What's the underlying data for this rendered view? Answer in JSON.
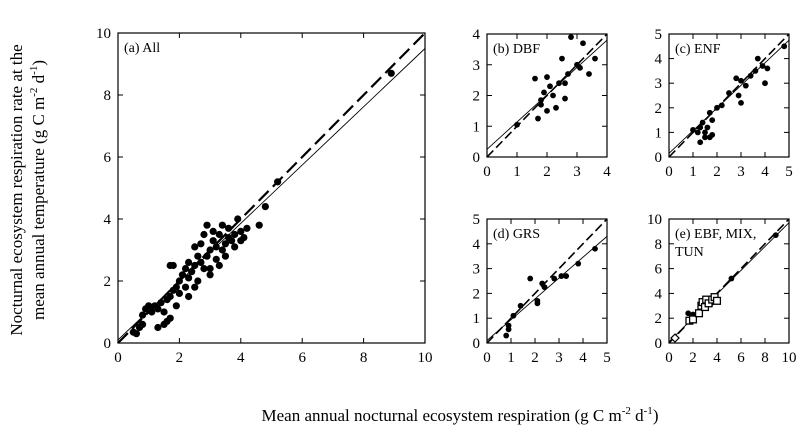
{
  "figure": {
    "xlabel": "Mean annual nocturnal ecosystem respiration (g C m",
    "xlabel_sup1": "-2",
    "xlabel_mid": " d",
    "xlabel_sup2": "-1",
    "xlabel_end": ")",
    "ylabel_line1": "Nocturnal ecosystem respiration rate at the",
    "ylabel_line2a": "mean annual temperature (g C m",
    "ylabel_sup1": "-2",
    "ylabel_mid": " d",
    "ylabel_sup2": "-1",
    "ylabel_end": ")"
  },
  "chart_data": [
    {
      "id": "all",
      "type": "scatter",
      "title": "(a) All",
      "xlim": [
        0,
        10
      ],
      "ylim": [
        0,
        10
      ],
      "xticks": [
        0,
        2,
        4,
        6,
        8,
        10
      ],
      "yticks": [
        0,
        2,
        4,
        6,
        8,
        10
      ],
      "one_to_one": [
        [
          0,
          0
        ],
        [
          10,
          10
        ]
      ],
      "regression": [
        [
          0,
          0.1
        ],
        [
          10,
          9.5
        ]
      ],
      "points": [
        [
          0.5,
          0.35
        ],
        [
          0.6,
          0.3
        ],
        [
          0.7,
          0.5
        ],
        [
          0.8,
          0.6
        ],
        [
          0.8,
          0.9
        ],
        [
          0.9,
          1.1
        ],
        [
          1.0,
          1.2
        ],
        [
          1.1,
          1.0
        ],
        [
          1.2,
          1.2
        ],
        [
          1.3,
          0.5
        ],
        [
          1.3,
          1.1
        ],
        [
          1.4,
          1.3
        ],
        [
          1.5,
          1.0
        ],
        [
          1.5,
          0.6
        ],
        [
          1.6,
          0.7
        ],
        [
          1.6,
          1.4
        ],
        [
          1.7,
          1.5
        ],
        [
          1.7,
          2.5
        ],
        [
          1.8,
          1.7
        ],
        [
          1.8,
          2.5
        ],
        [
          1.9,
          1.2
        ],
        [
          1.9,
          1.8
        ],
        [
          2.0,
          1.6
        ],
        [
          2.0,
          2.0
        ],
        [
          2.1,
          2.2
        ],
        [
          2.2,
          1.8
        ],
        [
          2.2,
          2.4
        ],
        [
          2.3,
          1.5
        ],
        [
          2.3,
          2.1
        ],
        [
          2.4,
          2.3
        ],
        [
          2.5,
          2.5
        ],
        [
          2.5,
          1.8
        ],
        [
          2.6,
          2.8
        ],
        [
          2.6,
          2.0
        ],
        [
          2.7,
          2.6
        ],
        [
          2.7,
          3.2
        ],
        [
          2.8,
          2.4
        ],
        [
          2.8,
          3.5
        ],
        [
          2.9,
          3.8
        ],
        [
          2.9,
          2.8
        ],
        [
          3.0,
          3.0
        ],
        [
          3.0,
          2.2
        ],
        [
          3.1,
          3.3
        ],
        [
          3.1,
          3.6
        ],
        [
          3.2,
          2.7
        ],
        [
          3.2,
          3.1
        ],
        [
          3.3,
          3.5
        ],
        [
          3.3,
          2.5
        ],
        [
          3.4,
          3.0
        ],
        [
          3.4,
          3.8
        ],
        [
          3.5,
          3.2
        ],
        [
          3.5,
          2.8
        ],
        [
          3.6,
          3.4
        ],
        [
          3.6,
          3.7
        ],
        [
          3.7,
          3.3
        ],
        [
          3.8,
          3.5
        ],
        [
          3.8,
          3.1
        ],
        [
          3.9,
          4.0
        ],
        [
          4.0,
          3.6
        ],
        [
          4.0,
          3.3
        ],
        [
          4.1,
          3.4
        ],
        [
          4.2,
          3.7
        ],
        [
          4.6,
          3.8
        ],
        [
          4.8,
          4.4
        ],
        [
          5.2,
          5.2
        ],
        [
          8.9,
          8.7
        ],
        [
          1.7,
          0.8
        ],
        [
          2.3,
          2.6
        ],
        [
          3.0,
          2.4
        ],
        [
          2.5,
          3.1
        ]
      ]
    },
    {
      "id": "dbf",
      "type": "scatter",
      "title": "(b) DBF",
      "xlim": [
        0,
        4
      ],
      "ylim": [
        0,
        4
      ],
      "xticks": [
        0,
        1,
        2,
        3,
        4
      ],
      "yticks": [
        0,
        1,
        2,
        3,
        4
      ],
      "one_to_one": [
        [
          0,
          0
        ],
        [
          4,
          4
        ]
      ],
      "regression": [
        [
          0,
          0.25
        ],
        [
          4,
          3.8
        ]
      ],
      "points": [
        [
          1.0,
          1.05
        ],
        [
          1.6,
          2.55
        ],
        [
          1.7,
          1.25
        ],
        [
          1.8,
          1.7
        ],
        [
          1.8,
          1.85
        ],
        [
          1.9,
          2.1
        ],
        [
          2.0,
          1.5
        ],
        [
          2.0,
          2.6
        ],
        [
          2.1,
          2.3
        ],
        [
          2.2,
          2.0
        ],
        [
          2.3,
          1.6
        ],
        [
          2.4,
          2.4
        ],
        [
          2.5,
          3.2
        ],
        [
          2.6,
          1.9
        ],
        [
          2.6,
          2.4
        ],
        [
          2.7,
          2.7
        ],
        [
          2.8,
          3.9
        ],
        [
          3.0,
          3.0
        ],
        [
          3.1,
          2.9
        ],
        [
          3.2,
          3.7
        ],
        [
          3.4,
          2.7
        ],
        [
          3.6,
          3.2
        ]
      ]
    },
    {
      "id": "enf",
      "type": "scatter",
      "title": "(c) ENF",
      "xlim": [
        0,
        5
      ],
      "ylim": [
        0,
        5
      ],
      "xticks": [
        0,
        1,
        2,
        3,
        4,
        5
      ],
      "yticks": [
        0,
        1,
        2,
        3,
        4,
        5
      ],
      "one_to_one": [
        [
          0,
          0
        ],
        [
          5,
          5
        ]
      ],
      "regression": [
        [
          0,
          0.15
        ],
        [
          5,
          4.75
        ]
      ],
      "points": [
        [
          1.0,
          1.1
        ],
        [
          1.2,
          1.0
        ],
        [
          1.3,
          0.6
        ],
        [
          1.3,
          1.2
        ],
        [
          1.4,
          1.4
        ],
        [
          1.5,
          0.8
        ],
        [
          1.5,
          1.0
        ],
        [
          1.6,
          1.2
        ],
        [
          1.7,
          1.8
        ],
        [
          1.7,
          0.8
        ],
        [
          1.8,
          1.5
        ],
        [
          1.8,
          0.9
        ],
        [
          2.0,
          2.0
        ],
        [
          2.2,
          2.1
        ],
        [
          2.5,
          2.6
        ],
        [
          2.8,
          3.2
        ],
        [
          2.9,
          2.5
        ],
        [
          3.0,
          2.2
        ],
        [
          3.0,
          3.1
        ],
        [
          3.2,
          2.9
        ],
        [
          3.4,
          3.3
        ],
        [
          3.6,
          3.5
        ],
        [
          3.7,
          4.0
        ],
        [
          3.9,
          3.7
        ],
        [
          4.0,
          3.0
        ],
        [
          4.1,
          3.6
        ],
        [
          4.8,
          4.5
        ]
      ]
    },
    {
      "id": "grs",
      "type": "scatter",
      "title": "(d) GRS",
      "xlim": [
        0,
        5
      ],
      "ylim": [
        0,
        5
      ],
      "xticks": [
        0,
        1,
        2,
        3,
        4,
        5
      ],
      "yticks": [
        0,
        1,
        2,
        3,
        4,
        5
      ],
      "one_to_one": [
        [
          0,
          0
        ],
        [
          5,
          5
        ]
      ],
      "regression": [
        [
          0,
          0.1
        ],
        [
          5,
          4.3
        ]
      ],
      "points": [
        [
          0.8,
          0.3
        ],
        [
          0.9,
          0.7
        ],
        [
          0.9,
          0.55
        ],
        [
          1.1,
          1.1
        ],
        [
          1.4,
          1.5
        ],
        [
          1.8,
          2.6
        ],
        [
          2.1,
          1.7
        ],
        [
          2.1,
          1.6
        ],
        [
          2.3,
          2.4
        ],
        [
          2.4,
          2.25
        ],
        [
          2.8,
          2.6
        ],
        [
          3.1,
          2.7
        ],
        [
          3.3,
          2.7
        ],
        [
          3.8,
          3.2
        ],
        [
          4.5,
          3.8
        ]
      ]
    },
    {
      "id": "ebf-mix-tun",
      "type": "scatter",
      "title": "(e) EBF, MIX,",
      "title_line2": "TUN",
      "xlim": [
        0,
        10
      ],
      "ylim": [
        0,
        10
      ],
      "xticks": [
        0,
        2,
        4,
        6,
        8,
        10
      ],
      "yticks": [
        0,
        2,
        4,
        6,
        8,
        10
      ],
      "one_to_one": [
        [
          0,
          0
        ],
        [
          10,
          10
        ]
      ],
      "regression": [
        [
          0,
          0.1
        ],
        [
          10,
          9.7
        ]
      ],
      "series": [
        {
          "marker": "circle-filled",
          "points": [
            [
              1.6,
              2.4
            ],
            [
              2.0,
              2.3
            ],
            [
              3.5,
              3.2
            ],
            [
              5.2,
              5.2
            ],
            [
              8.9,
              8.7
            ]
          ]
        },
        {
          "marker": "square-open",
          "points": [
            [
              1.7,
              1.8
            ],
            [
              2.0,
              1.9
            ],
            [
              2.5,
              2.4
            ],
            [
              2.7,
              3.0
            ],
            [
              2.8,
              3.3
            ],
            [
              3.0,
              2.9
            ],
            [
              3.1,
              3.5
            ],
            [
              3.3,
              3.2
            ],
            [
              3.6,
              3.5
            ],
            [
              3.8,
              3.7
            ],
            [
              4.0,
              3.4
            ]
          ]
        },
        {
          "marker": "diamond-open",
          "points": [
            [
              0.5,
              0.4
            ]
          ]
        }
      ]
    }
  ]
}
